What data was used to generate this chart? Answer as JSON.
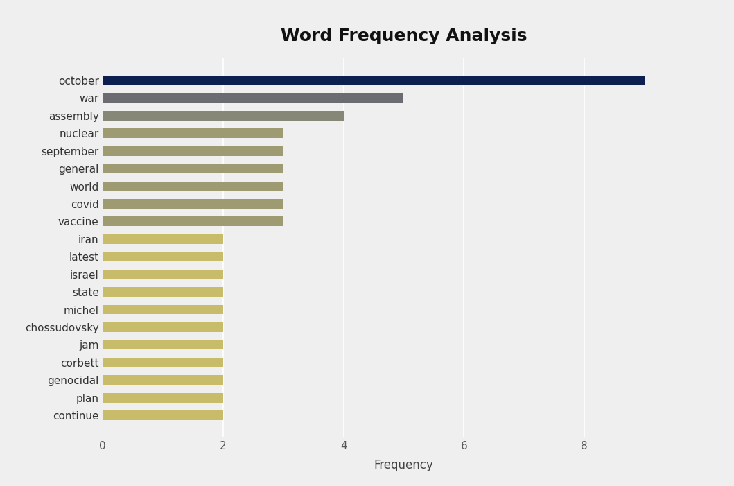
{
  "categories": [
    "october",
    "war",
    "assembly",
    "nuclear",
    "september",
    "general",
    "world",
    "covid",
    "vaccine",
    "iran",
    "latest",
    "israel",
    "state",
    "michel",
    "chossudovsky",
    "jam",
    "corbett",
    "genocidal",
    "plan",
    "continue"
  ],
  "values": [
    9,
    5,
    4,
    3,
    3,
    3,
    3,
    3,
    3,
    2,
    2,
    2,
    2,
    2,
    2,
    2,
    2,
    2,
    2,
    2
  ],
  "colors": [
    "#0d1f4e",
    "#6b6b72",
    "#878777",
    "#9e9b72",
    "#9e9b72",
    "#9e9b72",
    "#9e9b72",
    "#9e9b72",
    "#9e9b72",
    "#c8bc6a",
    "#c8bc6a",
    "#c8bc6a",
    "#c8bc6a",
    "#c8bc6a",
    "#c8bc6a",
    "#c8bc6a",
    "#c8bc6a",
    "#c8bc6a",
    "#c8bc6a",
    "#c8bc6a"
  ],
  "title": "Word Frequency Analysis",
  "xlabel": "Frequency",
  "background_color": "#efefef",
  "plot_bg_color": "#efefef",
  "title_fontsize": 18,
  "xlabel_fontsize": 12,
  "tick_fontsize": 11,
  "xlim": [
    0,
    10
  ],
  "xticks": [
    0,
    2,
    4,
    6,
    8
  ]
}
